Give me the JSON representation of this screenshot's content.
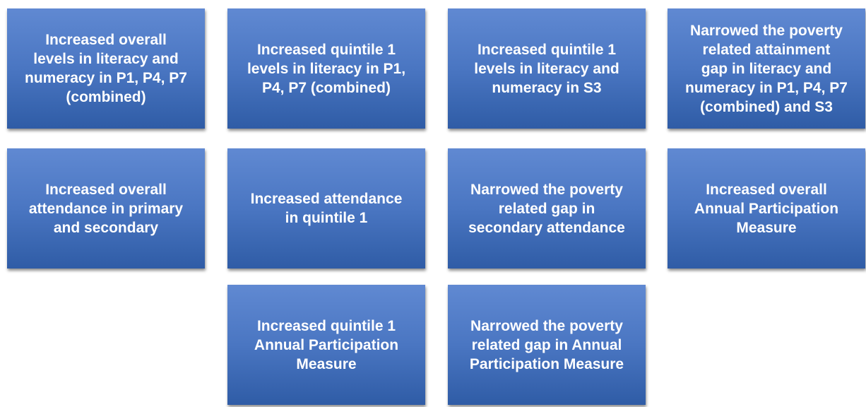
{
  "nodes": [
    {
      "lines": [
        "Increased overall",
        "levels in literacy and",
        "numeracy in P1, P4, P7",
        "(combined)"
      ]
    },
    {
      "lines": [
        "Increased quintile 1",
        "levels in literacy in P1,",
        "P4, P7 (combined)"
      ]
    },
    {
      "lines": [
        "Increased quintile 1",
        "levels in literacy and",
        "numeracy in S3"
      ]
    },
    {
      "lines": [
        "Narrowed the poverty",
        "related attainment",
        "gap in literacy and",
        "numeracy in P1, P4, P7",
        "(combined) and S3"
      ]
    },
    {
      "lines": [
        "Increased overall",
        "attendance in primary",
        "and secondary"
      ]
    },
    {
      "lines": [
        "Increased attendance",
        "in quintile 1"
      ]
    },
    {
      "lines": [
        "Narrowed the poverty",
        "related gap in",
        "secondary attendance"
      ]
    },
    {
      "lines": [
        "Increased overall",
        "Annual Participation",
        "Measure"
      ]
    },
    {
      "lines": [
        "Increased quintile 1",
        "Annual Participation",
        "Measure"
      ]
    },
    {
      "lines": [
        "Narrowed the poverty",
        "related gap in Annual",
        "Participation Measure"
      ]
    }
  ]
}
